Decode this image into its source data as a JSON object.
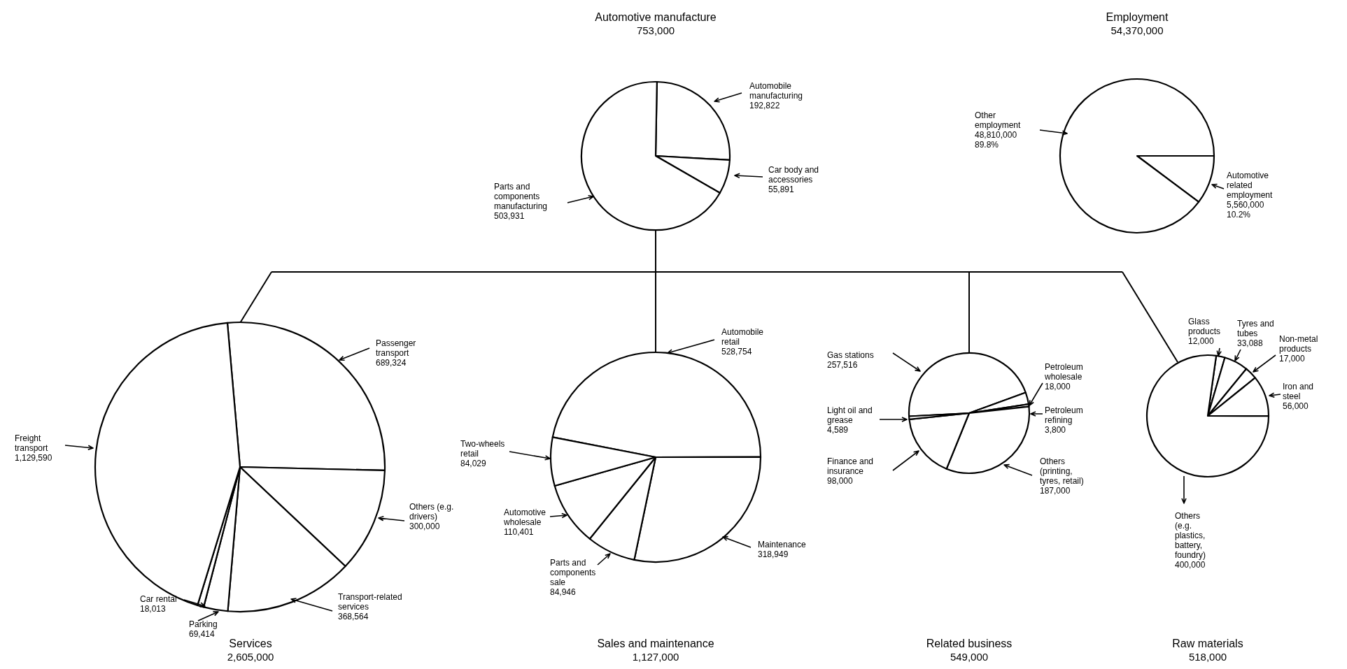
{
  "chart_data": [
    {
      "type": "pie",
      "title": "Automotive manufacture",
      "subtitle": "753,000",
      "categories": [
        "Automobile manufacturing",
        "Car body and accessories",
        "Parts and components manufacturing"
      ],
      "values": [
        192822,
        55891,
        503931
      ],
      "value_labels": [
        "192,822",
        "55,891",
        "503,931"
      ],
      "colors": [
        "#ffffff",
        "#ffffff",
        "#ffffff"
      ]
    },
    {
      "type": "pie",
      "title": "Employment",
      "subtitle": "54,370,000",
      "categories": [
        "Automotive related employment",
        "Other employment"
      ],
      "values": [
        5560000,
        48810000
      ],
      "value_labels": [
        "5,560,000\n10.2%",
        "48,810,000\n89.8%"
      ],
      "colors": [
        "#ffffff",
        "#ffffff"
      ]
    },
    {
      "type": "pie",
      "title": "Services",
      "subtitle": "2,605,000",
      "categories": [
        "Passenger transport",
        "Others (e.g. drivers)",
        "Transport-related services",
        "Parking",
        "Car rental",
        "Freight transport"
      ],
      "values": [
        689324,
        300000,
        368564,
        69414,
        18013,
        1129590
      ],
      "value_labels": [
        "689,324",
        "300,000",
        "368,564",
        "69,414",
        "18,013",
        "1,129,590"
      ],
      "colors": [
        "#ffffff",
        "#ffffff",
        "#ffffff",
        "#ffffff",
        "#ffffff",
        "#ffffff"
      ]
    },
    {
      "type": "pie",
      "title": "Sales and maintenance",
      "subtitle": "1,127,000",
      "categories": [
        "Automobile retail",
        "Maintenance",
        "Parts and components sale",
        "Automotive wholesale",
        "Two-wheels retail"
      ],
      "values": [
        528754,
        318949,
        84946,
        110401,
        84029
      ],
      "value_labels": [
        "528,754",
        "318,949",
        "84,946",
        "110,401",
        "84,029"
      ],
      "colors": [
        "#ffffff",
        "#ffffff",
        "#ffffff",
        "#ffffff",
        "#ffffff"
      ]
    },
    {
      "type": "pie",
      "title": "Related business",
      "subtitle": "549,000",
      "categories": [
        "Gas stations",
        "Petroleum wholesale",
        "Petroleum refining",
        "Others (printing, tyres, retail)",
        "Finance and insurance",
        "Light oil and grease"
      ],
      "values": [
        257516,
        18000,
        3800,
        187000,
        98000,
        4589
      ],
      "value_labels": [
        "257,516",
        "18,000",
        "3,800",
        "187,000",
        "98,000",
        "4,589"
      ],
      "colors": [
        "#ffffff",
        "#ffffff",
        "#ffffff",
        "#ffffff",
        "#ffffff",
        "#ffffff"
      ]
    },
    {
      "type": "pie",
      "title": "Raw materials",
      "subtitle": "518,000",
      "categories": [
        "Glass products",
        "Tyres and tubes",
        "Non-metal products",
        "Iron and steel",
        "Others (e.g. plastics, battery, foundry)"
      ],
      "values": [
        12000,
        33088,
        17000,
        56000,
        400000
      ],
      "value_labels": [
        "12,000",
        "33,088",
        "17,000",
        "56,000",
        "400,000"
      ],
      "colors": [
        "#ffffff",
        "#ffffff",
        "#ffffff",
        "#ffffff",
        "#ffffff"
      ]
    }
  ]
}
